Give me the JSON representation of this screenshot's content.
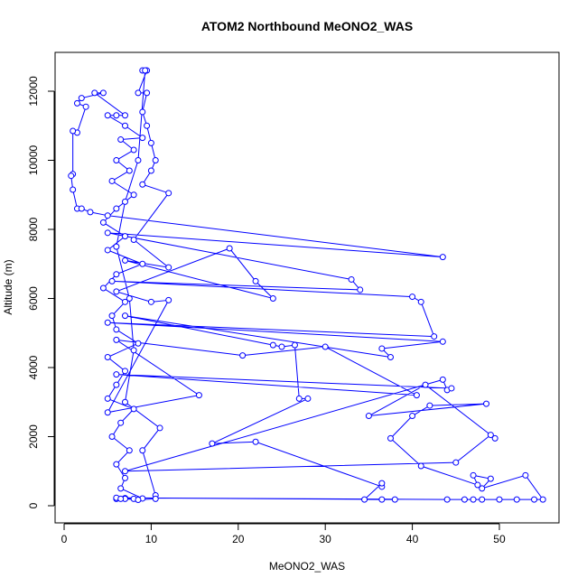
{
  "chart_data": {
    "type": "scatter",
    "title": "ATOM2 Northbound MeONO2_WAS",
    "x_label": "MeONO2_WAS",
    "y_label": "Altitude (m)",
    "color": "#0000ff",
    "lines": true,
    "xlim": [
      -1.04,
      56.85
    ],
    "ylim": [
      -497,
      13124
    ],
    "xticks": [
      0,
      10,
      20,
      30,
      40,
      50
    ],
    "yticks": [
      0,
      2000,
      4000,
      6000,
      8000,
      10000,
      12000
    ],
    "x": [
      6,
      7,
      8,
      9,
      6.5,
      7,
      6,
      7.5,
      5.5,
      6.5,
      8,
      5,
      6,
      7,
      5,
      8.5,
      6,
      5.5,
      7,
      4.5,
      6,
      9,
      5,
      7,
      4.5,
      6,
      8,
      5.5,
      7.5,
      6,
      8,
      6.5,
      9,
      7,
      5,
      6,
      7,
      3.5,
      4.5,
      2,
      1.5,
      2.5,
      1.5,
      1,
      1,
      0.8,
      1,
      1.5,
      2,
      3,
      5,
      43.5,
      5,
      33,
      34,
      5.5,
      40,
      41,
      42.5,
      5,
      43.5,
      36.5,
      37.5,
      7,
      24,
      25,
      26.5,
      27,
      28,
      17,
      22,
      36.5,
      36.5,
      34.5,
      36.5,
      38,
      6,
      44,
      46,
      47,
      48,
      50,
      52,
      54,
      55,
      53,
      48,
      49,
      47,
      47.5,
      41,
      37.5,
      40,
      42,
      48.5,
      35,
      41.5,
      49.5,
      49,
      45,
      7,
      43.5,
      44,
      44.5,
      6,
      40.5,
      30,
      20.5,
      6,
      15.5,
      5,
      12,
      10,
      6,
      19,
      22,
      24,
      7,
      12,
      8,
      12,
      9,
      10,
      10.5,
      10,
      9.5,
      9,
      9.5,
      8.5,
      9.5,
      9,
      9.3,
      8.5,
      7,
      6,
      7.5,
      8,
      7,
      11,
      9,
      10.5,
      10.5,
      8.5,
      7,
      6.5
    ],
    "y": [
      200,
      220,
      200,
      210,
      500,
      800,
      1200,
      1600,
      2000,
      2400,
      2800,
      3100,
      3500,
      3900,
      4300,
      4700,
      5100,
      5500,
      5900,
      6300,
      6700,
      7000,
      7400,
      7800,
      8200,
      8600,
      9000,
      9400,
      9700,
      10000,
      10300,
      10600,
      10650,
      11000,
      11300,
      11300,
      11300,
      11950,
      11950,
      11800,
      11650,
      11550,
      10800,
      10850,
      9600,
      9550,
      9150,
      8600,
      8600,
      8500,
      8400,
      7200,
      7900,
      6550,
      6250,
      6500,
      6050,
      5900,
      4900,
      5300,
      4750,
      4550,
      4300,
      5500,
      4650,
      4600,
      4650,
      3100,
      3100,
      1800,
      1850,
      550,
      650,
      180,
      180,
      180,
      230,
      180,
      180,
      180,
      180,
      180,
      180,
      180,
      180,
      880,
      500,
      780,
      880,
      600,
      1150,
      1950,
      2600,
      2900,
      2950,
      2600,
      3500,
      1950,
      2050,
      1250,
      1000,
      3650,
      3350,
      3400,
      3800,
      3200,
      4600,
      4350,
      4800,
      3200,
      2700,
      5950,
      5900,
      6200,
      7450,
      6500,
      6000,
      7100,
      6900,
      7700,
      9050,
      9300,
      9700,
      10000,
      10500,
      11000,
      11400,
      11950,
      11950,
      12600,
      12600,
      12600,
      10000,
      8800,
      7500,
      6000,
      4500,
      3000,
      2250,
      1600,
      300,
      200,
      170,
      200,
      200
    ]
  }
}
